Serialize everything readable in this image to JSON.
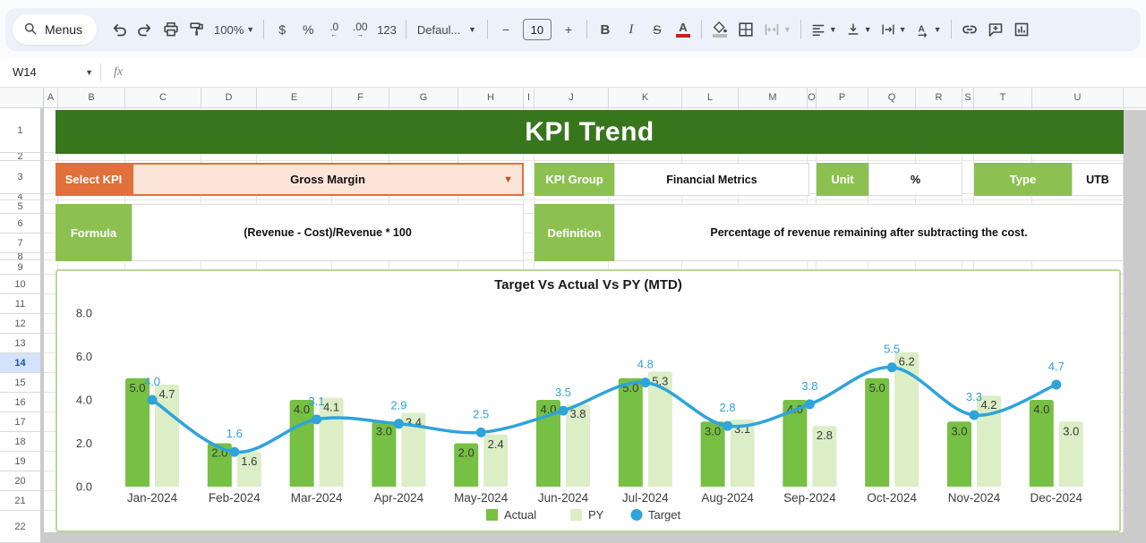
{
  "toolbar": {
    "menus": "Menus",
    "zoom": "100%",
    "currency": "$",
    "percent": "%",
    "decimal_decrease": ".0",
    "decimal_increase": ".00",
    "more_formats": "123",
    "font_family": "Defaul...",
    "font_size": "10",
    "decrease_font": "−",
    "increase_font": "+",
    "bold": "B",
    "italic": "I",
    "strikethrough": "S",
    "text_color": "A"
  },
  "formula_bar": {
    "name_box": "W14",
    "fx_label": "fx"
  },
  "grid": {
    "highlighted_row": "14",
    "columns": [
      {
        "label": "A",
        "width": 16
      },
      {
        "label": "B",
        "width": 75
      },
      {
        "label": "C",
        "width": 85
      },
      {
        "label": "D",
        "width": 62
      },
      {
        "label": "E",
        "width": 84
      },
      {
        "label": "F",
        "width": 64
      },
      {
        "label": "G",
        "width": 77
      },
      {
        "label": "H",
        "width": 73
      },
      {
        "label": "I",
        "width": 12
      },
      {
        "label": "J",
        "width": 83
      },
      {
        "label": "K",
        "width": 82
      },
      {
        "label": "L",
        "width": 63
      },
      {
        "label": "M",
        "width": 77
      },
      {
        "label": "O",
        "width": 10
      },
      {
        "label": "P",
        "width": 58
      },
      {
        "label": "Q",
        "width": 53
      },
      {
        "label": "R",
        "width": 52
      },
      {
        "label": "S",
        "width": 13
      },
      {
        "label": "T",
        "width": 65
      },
      {
        "label": "U",
        "width": 102
      }
    ],
    "rows": [
      {
        "label": "1",
        "height": 50
      },
      {
        "label": "2",
        "height": 9
      },
      {
        "label": "3",
        "height": 37
      },
      {
        "label": "4",
        "height": 7
      },
      {
        "label": "5",
        "height": 15
      },
      {
        "label": "6",
        "height": 22
      },
      {
        "label": "7",
        "height": 22
      },
      {
        "label": "8",
        "height": 8
      },
      {
        "label": "9",
        "height": 16
      },
      {
        "label": "10",
        "height": 22
      },
      {
        "label": "11",
        "height": 22
      },
      {
        "label": "12",
        "height": 22
      },
      {
        "label": "13",
        "height": 22
      },
      {
        "label": "14",
        "height": 22
      },
      {
        "label": "15",
        "height": 22
      },
      {
        "label": "16",
        "height": 22
      },
      {
        "label": "17",
        "height": 22
      },
      {
        "label": "18",
        "height": 22
      },
      {
        "label": "19",
        "height": 22
      },
      {
        "label": "20",
        "height": 22
      },
      {
        "label": "21",
        "height": 22
      },
      {
        "label": "22",
        "height": 36
      }
    ]
  },
  "dashboard": {
    "title": "KPI Trend",
    "select_kpi_label": "Select KPI",
    "select_kpi_value": "Gross Margin",
    "kpi_group_label": "KPI Group",
    "kpi_group_value": "Financial Metrics",
    "unit_label": "Unit",
    "unit_value": "%",
    "type_label": "Type",
    "type_value": "UTB",
    "formula_label": "Formula",
    "formula_value": "(Revenue - Cost)/Revenue * 100",
    "definition_label": "Definition",
    "definition_value": "Percentage of revenue remaining after subtracting the cost."
  },
  "chart_data": {
    "type": "bar",
    "title": "Target Vs Actual Vs PY (MTD)",
    "categories": [
      "Jan-2024",
      "Feb-2024",
      "Mar-2024",
      "Apr-2024",
      "May-2024",
      "Jun-2024",
      "Jul-2024",
      "Aug-2024",
      "Sep-2024",
      "Oct-2024",
      "Nov-2024",
      "Dec-2024"
    ],
    "series": [
      {
        "name": "Actual",
        "type": "bar",
        "color": "#76C043",
        "values": [
          5.0,
          2.0,
          4.0,
          3.0,
          2.0,
          4.0,
          5.0,
          3.0,
          4.0,
          5.0,
          3.0,
          4.0
        ]
      },
      {
        "name": "PY",
        "type": "bar",
        "color": "#DBEEC6",
        "values": [
          4.7,
          1.6,
          4.1,
          3.4,
          2.4,
          3.8,
          5.3,
          3.1,
          2.8,
          6.2,
          4.2,
          3.0
        ]
      },
      {
        "name": "Target",
        "type": "line",
        "color": "#2EA3DC",
        "values": [
          4.0,
          1.6,
          3.1,
          2.9,
          2.5,
          3.5,
          4.8,
          2.8,
          3.8,
          5.5,
          3.3,
          4.7
        ]
      }
    ],
    "ylim": [
      0,
      8
    ],
    "yticks": [
      8.0,
      6.0,
      4.0,
      2.0,
      0.0
    ],
    "legend_position": "bottom",
    "grid": false
  },
  "colors": {
    "banner_green": "#38761D",
    "label_green": "#8CC152",
    "accent_orange": "#E2703A",
    "dropdown_peach": "#FCE5D8",
    "bar_actual": "#76C043",
    "bar_py": "#DBEEC6",
    "target_blue": "#2EA3DC",
    "chart_border": "#B9D89B",
    "row_highlight": "#D3E3FD"
  }
}
